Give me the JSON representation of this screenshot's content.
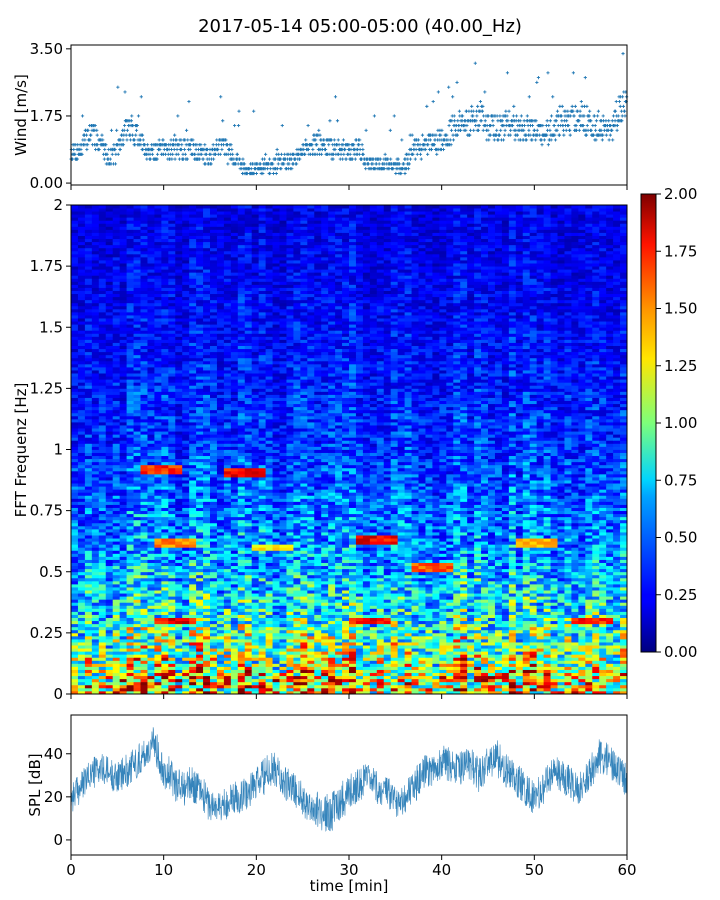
{
  "figure": {
    "title": "2017-05-14 05:00-05:00 (40.00_Hz)"
  },
  "chart_data": [
    {
      "type": "scatter",
      "name": "wind",
      "xlim": [
        0,
        60
      ],
      "ylim": [
        -0.05,
        3.6
      ],
      "ylabel": "Wind [m/s]",
      "yticks": [
        0.0,
        1.75,
        3.5
      ],
      "ytick_labels": [
        "0.00",
        "1.75",
        "3.50"
      ],
      "xticks": [
        0,
        10,
        20,
        30,
        40,
        50,
        60
      ],
      "color": "#1f77b4",
      "marker": "+",
      "x": [
        0,
        1,
        2,
        3,
        4,
        5,
        6,
        7,
        8,
        9,
        10,
        11,
        12,
        13,
        14,
        15,
        16,
        17,
        18,
        19,
        20,
        21,
        22,
        23,
        24,
        25,
        26,
        27,
        28,
        29,
        30,
        31,
        32,
        33,
        34,
        35,
        36,
        37,
        38,
        39,
        40,
        41,
        42,
        43,
        44,
        45,
        46,
        47,
        48,
        49,
        50,
        51,
        52,
        53,
        54,
        55,
        56,
        57,
        58,
        59,
        60
      ],
      "y": [
        0.7,
        0.75,
        1.2,
        1.0,
        0.6,
        0.7,
        1.3,
        1.2,
        0.8,
        0.7,
        0.75,
        0.8,
        0.75,
        0.8,
        0.7,
        0.6,
        0.9,
        0.7,
        0.5,
        0.3,
        0.3,
        0.35,
        0.4,
        0.5,
        0.45,
        0.7,
        0.9,
        0.85,
        0.8,
        0.75,
        0.7,
        0.85,
        0.4,
        0.4,
        0.45,
        0.4,
        0.35,
        0.8,
        0.8,
        0.9,
        1.0,
        1.2,
        1.4,
        1.4,
        1.6,
        1.3,
        1.3,
        1.4,
        1.3,
        1.3,
        1.2,
        1.1,
        1.3,
        1.5,
        1.5,
        1.6,
        1.4,
        1.3,
        1.2,
        1.6,
        2.0
      ]
    },
    {
      "type": "heatmap",
      "name": "fft-spectrogram",
      "xlim": [
        0,
        60
      ],
      "ylim": [
        0,
        2
      ],
      "ylabel": "FFT Frequenz [Hz]",
      "yticks": [
        0,
        0.25,
        0.5,
        0.75,
        1,
        1.25,
        1.5,
        1.75,
        2
      ],
      "ytick_labels": [
        "0",
        "0.25",
        "0.5",
        "0.75",
        "1",
        "1.25",
        "1.5",
        "1.75",
        "2"
      ],
      "colormap": "jet",
      "clim": [
        0,
        2
      ],
      "colorbar_ticks": [
        "0.00",
        "0.25",
        "0.50",
        "0.75",
        "1.00",
        "1.25",
        "1.50",
        "1.75",
        "2.00"
      ],
      "typical_level": [
        {
          "frequency": 0.05,
          "value": 1.2
        },
        {
          "frequency": 0.3,
          "value": 0.8
        },
        {
          "frequency": 0.55,
          "value": 0.55
        },
        {
          "frequency": 1.0,
          "value": 0.35
        },
        {
          "frequency": 1.5,
          "value": 0.25
        },
        {
          "frequency": 2.0,
          "value": 0.2
        }
      ],
      "hot_spots": [
        {
          "time": 11,
          "frequency": 0.3,
          "value": 1.9
        },
        {
          "time": 32,
          "frequency": 0.3,
          "value": 1.9
        },
        {
          "time": 56,
          "frequency": 0.3,
          "value": 1.8
        },
        {
          "time": 10,
          "frequency": 0.92,
          "value": 1.8
        },
        {
          "time": 19,
          "frequency": 0.91,
          "value": 1.9
        },
        {
          "time": 33,
          "frequency": 0.63,
          "value": 1.9
        },
        {
          "time": 11,
          "frequency": 0.62,
          "value": 1.6
        },
        {
          "time": 22,
          "frequency": 0.6,
          "value": 1.4
        },
        {
          "time": 39,
          "frequency": 0.52,
          "value": 1.7
        },
        {
          "time": 50,
          "frequency": 0.62,
          "value": 1.5
        }
      ]
    },
    {
      "type": "line",
      "name": "spl",
      "xlim": [
        0,
        60
      ],
      "ylim": [
        -7,
        58
      ],
      "xlabel": "time [min]",
      "ylabel": "SPL [dB]",
      "xticks": [
        0,
        10,
        20,
        30,
        40,
        50,
        60
      ],
      "yticks": [
        0,
        20,
        40
      ],
      "color": "#1f77b4",
      "x": [
        0,
        1,
        2,
        3,
        4,
        5,
        6,
        7,
        8,
        9,
        10,
        11,
        12,
        13,
        14,
        15,
        16,
        17,
        18,
        19,
        20,
        21,
        22,
        23,
        24,
        25,
        26,
        27,
        28,
        29,
        30,
        31,
        32,
        33,
        34,
        35,
        36,
        37,
        38,
        39,
        40,
        41,
        42,
        43,
        44,
        45,
        46,
        47,
        48,
        49,
        50,
        51,
        52,
        53,
        54,
        55,
        56,
        57,
        58,
        59,
        60
      ],
      "y": [
        20,
        24,
        30,
        33,
        31,
        29,
        32,
        36,
        40,
        45,
        33,
        28,
        24,
        26,
        23,
        16,
        15,
        18,
        20,
        22,
        26,
        30,
        33,
        26,
        24,
        19,
        15,
        13,
        12,
        18,
        22,
        26,
        28,
        24,
        22,
        18,
        20,
        24,
        31,
        33,
        36,
        35,
        33,
        36,
        30,
        36,
        38,
        32,
        28,
        24,
        19,
        24,
        32,
        30,
        26,
        24,
        31,
        39,
        37,
        31,
        28
      ],
      "band": [
        8,
        7,
        7,
        8,
        8,
        7,
        8,
        8,
        8,
        8,
        9,
        9,
        9,
        8,
        8,
        8,
        8,
        8,
        8,
        8,
        8,
        9,
        8,
        8,
        8,
        8,
        8,
        9,
        9,
        9,
        9,
        8,
        8,
        8,
        8,
        8,
        8,
        8,
        8,
        8,
        8,
        8,
        8,
        8,
        8,
        8,
        9,
        8,
        8,
        8,
        8,
        8,
        8,
        8,
        8,
        8,
        8,
        8,
        8,
        8,
        8
      ]
    }
  ]
}
